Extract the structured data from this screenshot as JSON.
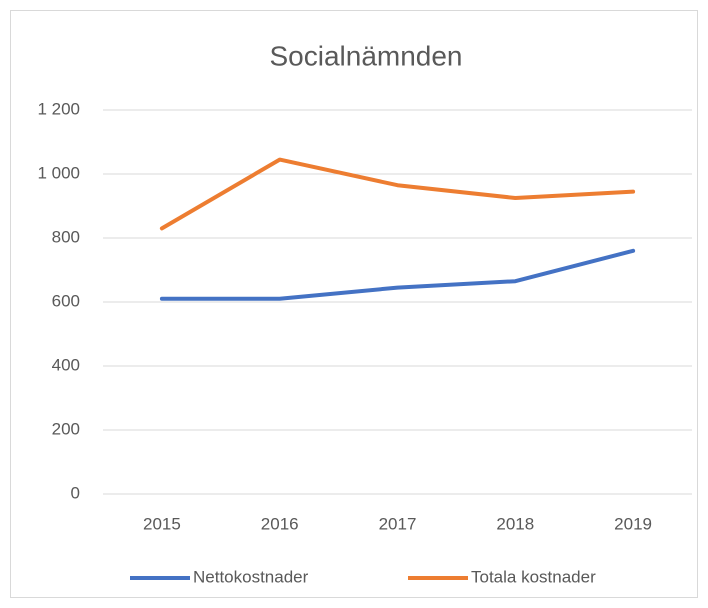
{
  "chart_data": {
    "type": "line",
    "title": "Socialnämnden",
    "categories": [
      "2015",
      "2016",
      "2017",
      "2018",
      "2019"
    ],
    "series": [
      {
        "name": "Nettokostnader",
        "color": "#4472c4",
        "values": [
          610,
          610,
          645,
          665,
          760
        ]
      },
      {
        "name": "Totala kostnader",
        "color": "#ed7d31",
        "values": [
          830,
          1045,
          965,
          925,
          945
        ]
      }
    ],
    "ylim": [
      0,
      1200
    ],
    "yticks": [
      0,
      200,
      400,
      600,
      800,
      {
        "value": 1000,
        "label": "1 000"
      },
      {
        "value": 1200,
        "label": "1 200"
      }
    ],
    "grid": true
  }
}
